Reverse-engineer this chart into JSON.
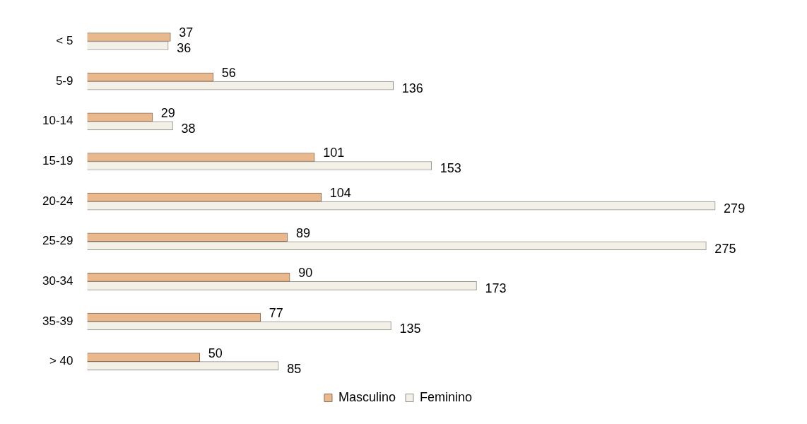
{
  "chart_data": {
    "type": "bar",
    "orientation": "horizontal",
    "categories": [
      "< 5",
      "5-9",
      "10-14",
      "15-19",
      "20-24",
      "25-29",
      "30-34",
      "35-39",
      "> 40"
    ],
    "series": [
      {
        "name": "Masculino",
        "color": "#e9b88c",
        "values": [
          37,
          56,
          29,
          101,
          104,
          89,
          90,
          77,
          50
        ]
      },
      {
        "name": "Feminino",
        "color": "#f3f0e7",
        "values": [
          36,
          136,
          38,
          153,
          279,
          275,
          173,
          135,
          85
        ]
      }
    ],
    "data_labels": true,
    "legend": "bottom"
  }
}
